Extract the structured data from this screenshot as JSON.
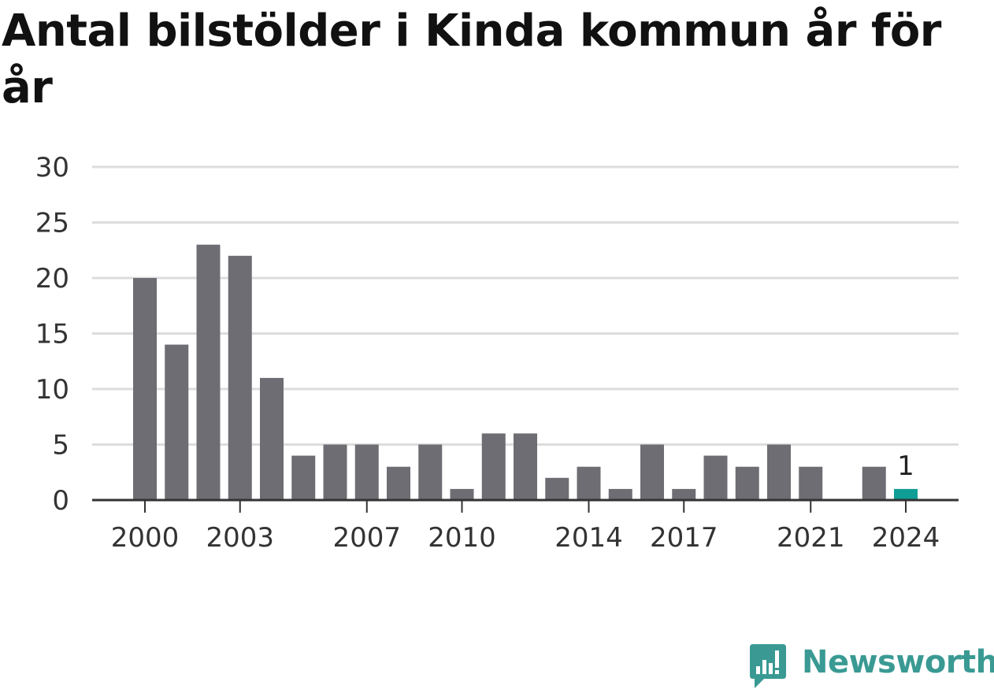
{
  "title": "Antal bilstölder i Kinda kommun år för år",
  "brand": {
    "name": "Newsworthy",
    "color": "#3a9a93",
    "icon": "bar-chart-speech-bubble-icon"
  },
  "colors": {
    "bar": "#6e6d73",
    "highlight": "#0f9e96",
    "grid": "#dddddd",
    "axis": "#333333"
  },
  "chart_data": {
    "type": "bar",
    "title": "Antal bilstölder i Kinda kommun år för år",
    "xlabel": "",
    "ylabel": "",
    "ylim": [
      0,
      30
    ],
    "yticks": [
      0,
      5,
      10,
      15,
      20,
      25,
      30
    ],
    "grid": true,
    "categories": [
      2000,
      2001,
      2002,
      2003,
      2004,
      2005,
      2006,
      2007,
      2008,
      2009,
      2010,
      2011,
      2012,
      2013,
      2014,
      2015,
      2016,
      2017,
      2018,
      2019,
      2020,
      2021,
      2022,
      2023,
      2024
    ],
    "values": [
      20,
      14,
      23,
      22,
      11,
      4,
      5,
      5,
      3,
      5,
      1,
      6,
      6,
      2,
      3,
      1,
      5,
      1,
      4,
      3,
      5,
      3,
      0,
      3,
      1
    ],
    "xtick_labels": [
      "2000",
      "2003",
      "2007",
      "2010",
      "2014",
      "2017",
      "2021",
      "2024"
    ],
    "highlight": {
      "category": 2024,
      "label": "1"
    }
  }
}
